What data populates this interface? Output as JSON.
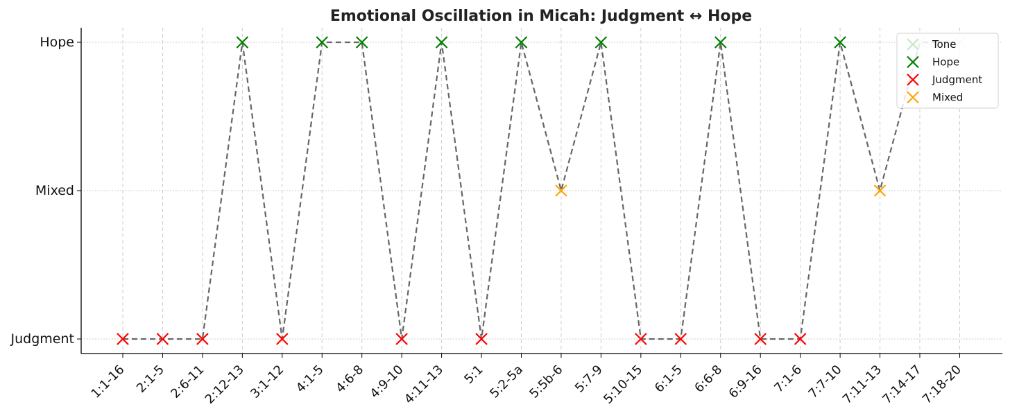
{
  "chart_data": {
    "type": "line",
    "title": "Emotional Oscillation in Micah: Judgment ↔ Hope",
    "xlabel": "",
    "ylabel": "",
    "categories": [
      "1:1-16",
      "2:1-5",
      "2:6-11",
      "2:12-13",
      "3:1-12",
      "4:1-5",
      "4:6-8",
      "4:9-10",
      "4:11-13",
      "5:1",
      "5:2-5a",
      "5:5b-6",
      "5:7-9",
      "5:10-15",
      "6:1-5",
      "6:6-8",
      "6:9-16",
      "7:1-6",
      "7:7-10",
      "7:11-13",
      "7:14-17",
      "7:18-20"
    ],
    "tone_levels": [
      "Judgment",
      "Mixed",
      "Hope"
    ],
    "series": [
      {
        "name": "Tone",
        "values": [
          "Judgment",
          "Judgment",
          "Judgment",
          "Hope",
          "Judgment",
          "Hope",
          "Hope",
          "Judgment",
          "Hope",
          "Judgment",
          "Hope",
          "Mixed",
          "Hope",
          "Judgment",
          "Judgment",
          "Hope",
          "Judgment",
          "Judgment",
          "Hope",
          "Mixed",
          "Hope",
          "Hope"
        ]
      }
    ],
    "legend": {
      "position": "top-right",
      "entries": [
        {
          "label": "Tone",
          "color": "#c8e6c8"
        },
        {
          "label": "Hope",
          "color": "#008000"
        },
        {
          "label": "Judgment",
          "color": "#ff0000"
        },
        {
          "label": "Mixed",
          "color": "#ffa500"
        }
      ]
    },
    "colors": {
      "Hope": "#008000",
      "Judgment": "#ff0000",
      "Mixed": "#ffa500",
      "line": "#666666",
      "grid": "#cccccc",
      "tone_marker": "#c8e6c8"
    },
    "grid": true,
    "xtick_rotation": 45
  }
}
